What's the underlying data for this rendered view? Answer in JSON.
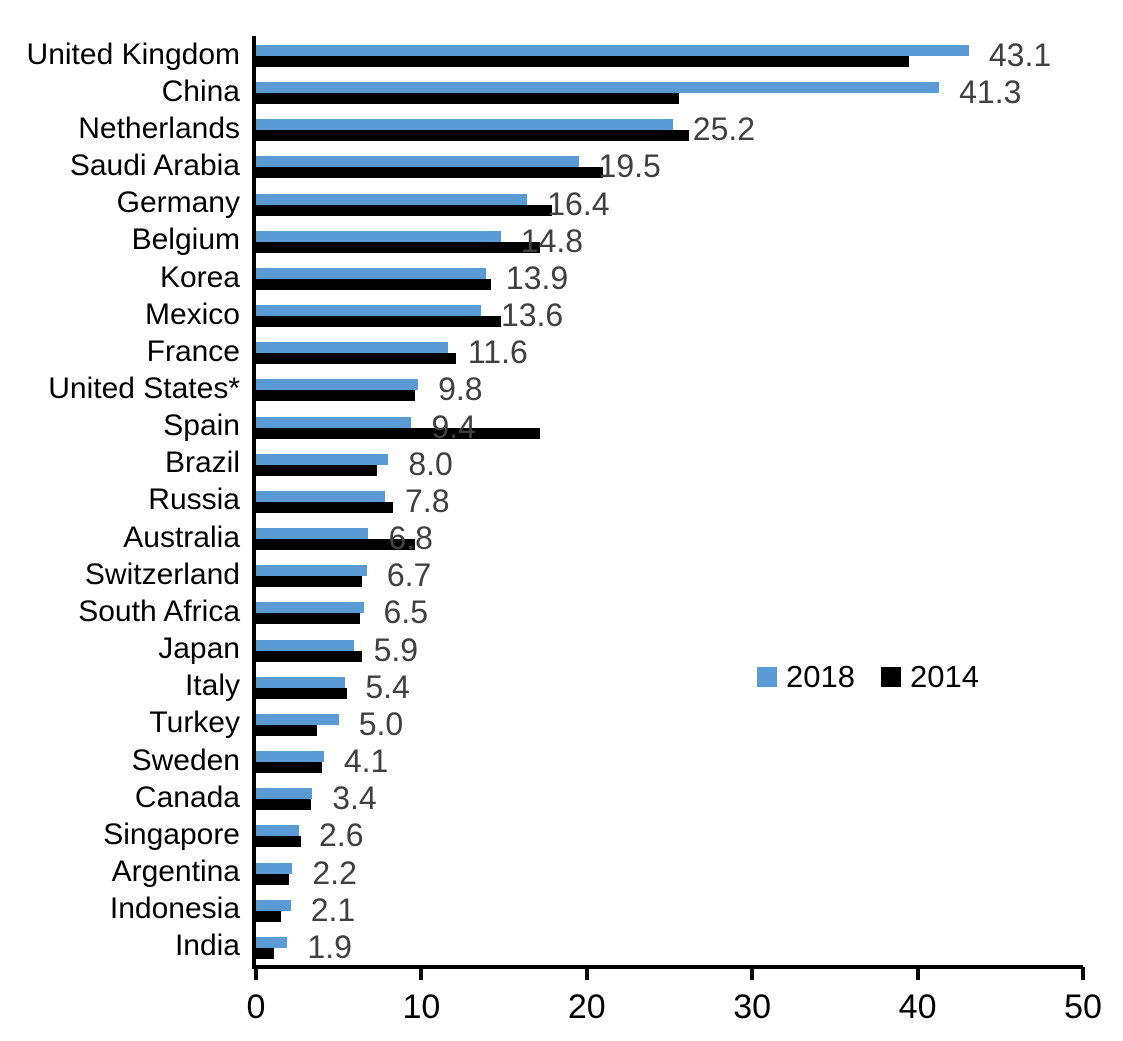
{
  "chart_data": {
    "type": "bar",
    "orientation": "horizontal",
    "title": "",
    "xlabel": "",
    "ylabel": "",
    "xlim": [
      0,
      50
    ],
    "x_ticks": [
      0,
      10,
      20,
      30,
      40,
      50
    ],
    "grid": false,
    "legend_position": "middle-right",
    "data_label_color": "#404040",
    "axis_color": "#000000",
    "categories": [
      "United Kingdom",
      "China",
      "Netherlands",
      "Saudi Arabia",
      "Germany",
      "Belgium",
      "Korea",
      "Mexico",
      "France",
      "United States*",
      "Spain",
      "Brazil",
      "Russia",
      "Australia",
      "Switzerland",
      "South Africa",
      "Japan",
      "Italy",
      "Turkey",
      "Sweden",
      "Canada",
      "Singapore",
      "Argentina",
      "Indonesia",
      "India"
    ],
    "series": [
      {
        "name": "2018",
        "color": "#5B9BD5",
        "values": [
          43.1,
          41.3,
          25.2,
          19.5,
          16.4,
          14.8,
          13.9,
          13.6,
          11.6,
          9.8,
          9.4,
          8.0,
          7.8,
          6.8,
          6.7,
          6.5,
          5.9,
          5.4,
          5.0,
          4.1,
          3.4,
          2.6,
          2.2,
          2.1,
          1.9
        ],
        "data_labels": [
          "43.1",
          "41.3",
          "25.2",
          "19.5",
          "16.4",
          "14.8",
          "13.9",
          "13.6",
          "11.6",
          "9.8",
          "9.4",
          "8.0",
          "7.8",
          "6.8",
          "6.7",
          "6.5",
          "5.9",
          "5.4",
          "5.0",
          "4.1",
          "3.4",
          "2.6",
          "2.2",
          "2.1",
          "1.9"
        ]
      },
      {
        "name": "2014",
        "color": "#000000",
        "values": [
          39.5,
          25.6,
          26.2,
          21.0,
          17.9,
          17.2,
          14.2,
          14.8,
          12.1,
          9.6,
          17.2,
          7.3,
          8.3,
          9.6,
          6.4,
          6.3,
          6.4,
          5.5,
          3.7,
          4.0,
          3.3,
          2.7,
          2.0,
          1.5,
          1.1
        ]
      }
    ]
  }
}
